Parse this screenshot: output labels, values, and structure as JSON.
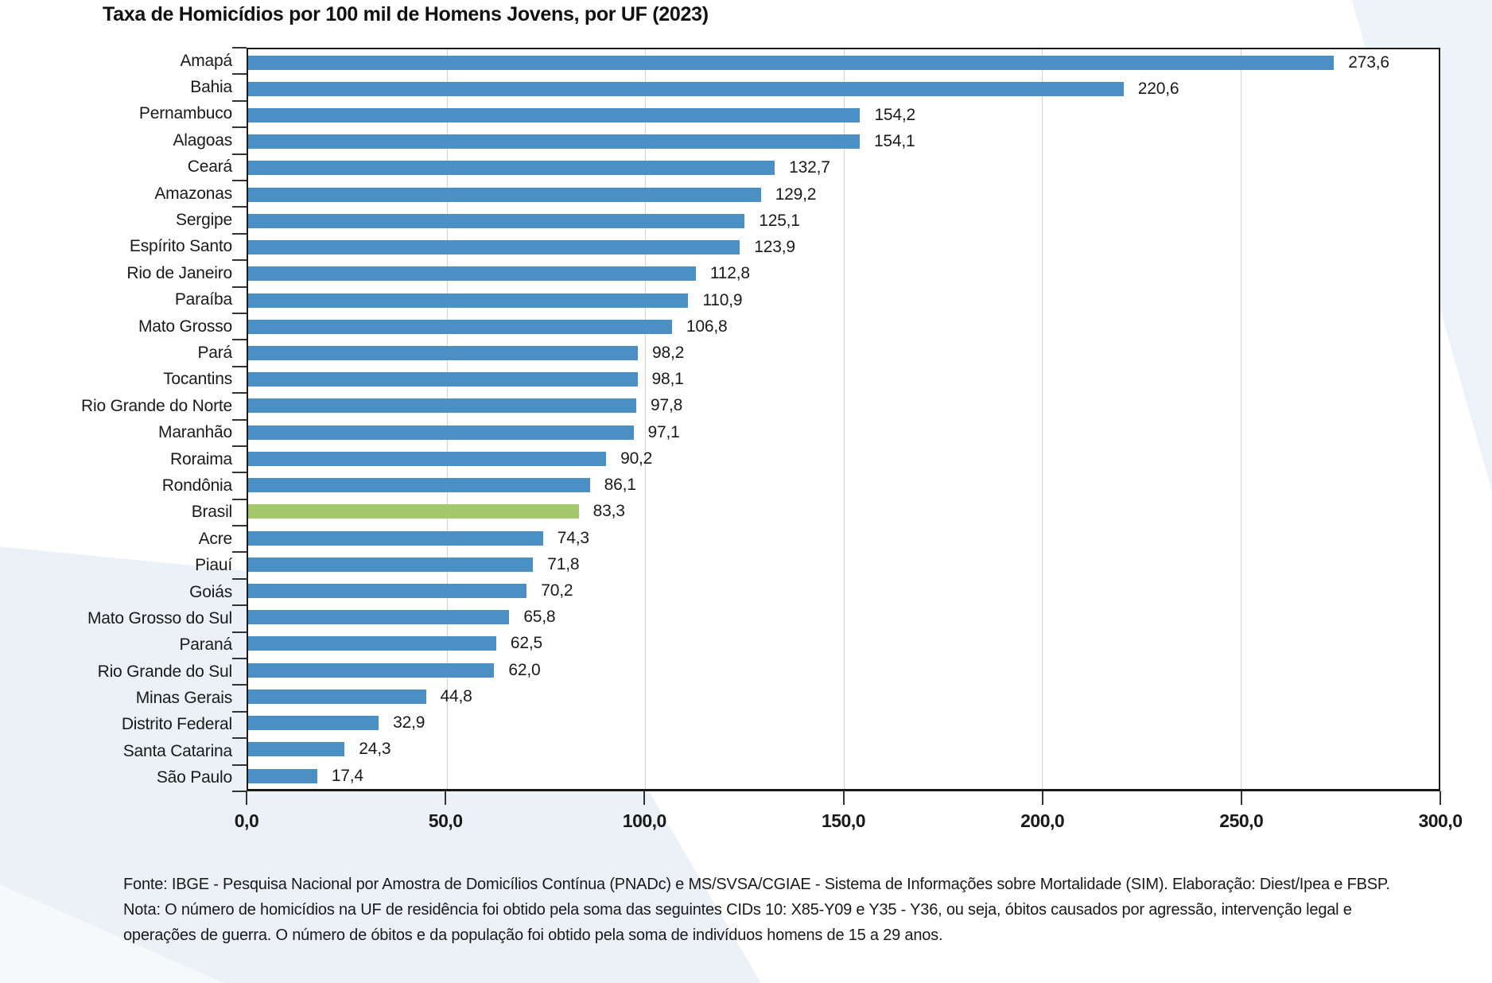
{
  "title": "Taxa de Homicídios por 100 mil de Homens Jovens, por UF (2023)",
  "chart_data": {
    "type": "bar",
    "orientation": "horizontal",
    "title": "Taxa de Homicídios por 100 mil de Homens Jovens, por UF (2023)",
    "categories": [
      "Amapá",
      "Bahia",
      "Pernambuco",
      "Alagoas",
      "Ceará",
      "Amazonas",
      "Sergipe",
      "Espírito Santo",
      "Rio de Janeiro",
      "Paraíba",
      "Mato Grosso",
      "Pará",
      "Tocantins",
      "Rio Grande do Norte",
      "Maranhão",
      "Roraima",
      "Rondônia",
      "Brasil",
      "Acre",
      "Piauí",
      "Goiás",
      "Mato Grosso do Sul",
      "Paraná",
      "Rio Grande do Sul",
      "Minas Gerais",
      "Distrito Federal",
      "Santa Catarina",
      "São Paulo"
    ],
    "values": [
      273.6,
      220.6,
      154.2,
      154.1,
      132.7,
      129.2,
      125.1,
      123.9,
      112.8,
      110.9,
      106.8,
      98.2,
      98.1,
      97.8,
      97.1,
      90.2,
      86.1,
      83.3,
      74.3,
      71.8,
      70.2,
      65.8,
      62.5,
      62.0,
      44.8,
      32.9,
      24.3,
      17.4
    ],
    "value_labels": [
      "273,6",
      "220,6",
      "154,2",
      "154,1",
      "132,7",
      "129,2",
      "125,1",
      "123,9",
      "112,8",
      "110,9",
      "106,8",
      "98,2",
      "98,1",
      "97,8",
      "97,1",
      "90,2",
      "86,1",
      "83,3",
      "74,3",
      "71,8",
      "70,2",
      "65,8",
      "62,5",
      "62,0",
      "44,8",
      "32,9",
      "24,3",
      "17,4"
    ],
    "highlight_category": "Brasil",
    "highlight_index": 17,
    "bar_color": "#4a90c4",
    "highlight_color": "#a3c96c",
    "xlim": [
      0,
      300
    ],
    "x_ticks": [
      0,
      50,
      100,
      150,
      200,
      250,
      300
    ],
    "x_tick_labels": [
      "0,0",
      "50,0",
      "100,0",
      "150,0",
      "200,0",
      "250,0",
      "300,0"
    ],
    "grid": "vertical-gridlines-at-ticks",
    "legend": "none"
  },
  "footer": {
    "lines": [
      "Fonte: IBGE - Pesquisa Nacional por Amostra de Domicílios Contínua (PNADc) e MS/SVSA/CGIAE - Sistema de Informações sobre Mortalidade (SIM). Elaboração: Diest/Ipea e FBSP.",
      "Nota: O número de homicídios na UF de residência foi obtido pela soma das seguintes CIDs 10: X85-Y09 e Y35 - Y36, ou seja, óbitos causados por agressão, intervenção legal e",
      "operações de guerra. O número de óbitos e da população foi obtido pela soma de indivíduos homens de 15 a 29 anos."
    ]
  },
  "colors": {
    "bar": "#4a90c4",
    "highlight": "#a3c96c",
    "axis": "#1a1a1a",
    "gridline": "#d3d3d3",
    "background_wedge": "#ebf1f7"
  }
}
